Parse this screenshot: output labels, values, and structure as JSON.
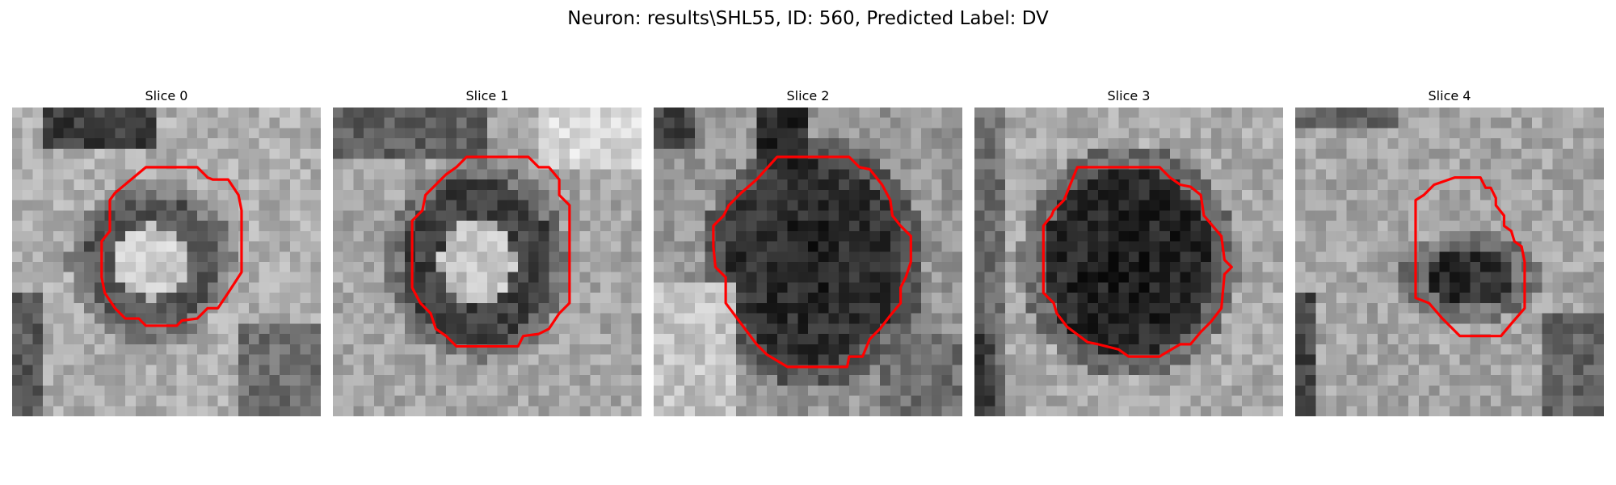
{
  "figure": {
    "title": "Neuron: results\\SHL55, ID: 560, Predicted Label: DV"
  },
  "colors": {
    "contour": "#ff0000",
    "background": "#ffffff"
  },
  "panels": [
    {
      "title": "Slice 0",
      "pattern": "ring-bright-center"
    },
    {
      "title": "Slice 1",
      "pattern": "ring-bright-center"
    },
    {
      "title": "Slice 2",
      "pattern": "dark-blob"
    },
    {
      "title": "Slice 3",
      "pattern": "dark-blob"
    },
    {
      "title": "Slice 4",
      "pattern": "small-dark-blob"
    }
  ]
}
